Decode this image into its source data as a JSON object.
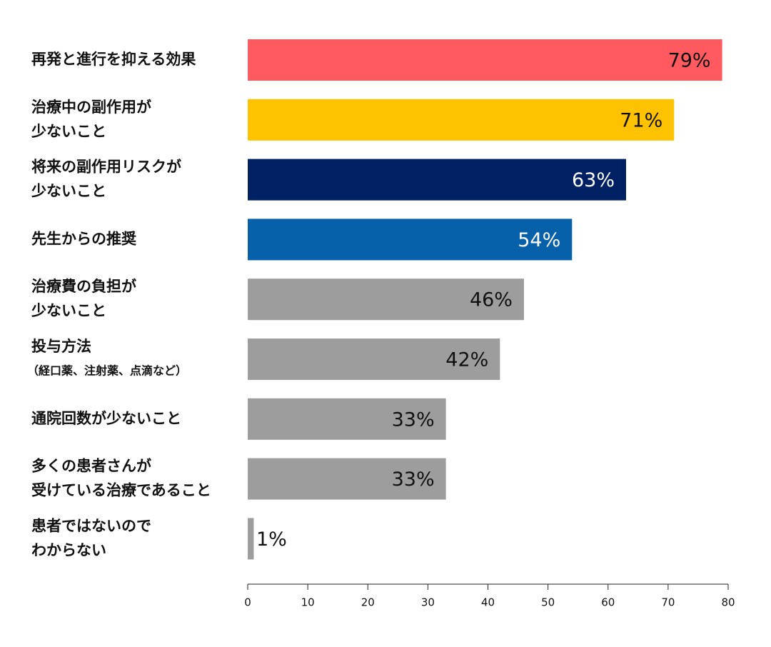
{
  "chart_data": {
    "type": "barh",
    "categories": [
      [
        "再発と進行を抑える効果"
      ],
      [
        "治療中の副作用が",
        "少ないこと"
      ],
      [
        "将来の副作用リスクが",
        "少ないこと"
      ],
      [
        "先生からの推奨"
      ],
      [
        "治療費の負担が",
        "少ないこと"
      ],
      [
        "投与方法",
        "（経口薬、注射薬、点滴など）"
      ],
      [
        "通院回数が少ないこと"
      ],
      [
        "多くの患者さんが",
        "受けている治療であること"
      ],
      [
        "患者ではないので",
        "わからない"
      ]
    ],
    "values": [
      79,
      71,
      63,
      54,
      46,
      42,
      33,
      33,
      1
    ],
    "value_labels": [
      "79%",
      "71%",
      "63%",
      "54%",
      "46%",
      "42%",
      "33%",
      "33%",
      "1%"
    ],
    "colors": [
      "#fe5a5f",
      "#fec200",
      "#002064",
      "#0660aa",
      "#9d9d9d",
      "#9d9d9d",
      "#9d9d9d",
      "#9d9d9d",
      "#9d9d9d"
    ],
    "xlim": [
      0,
      80
    ],
    "xticks": [
      0,
      10,
      20,
      30,
      40,
      50,
      60,
      70,
      80
    ]
  }
}
